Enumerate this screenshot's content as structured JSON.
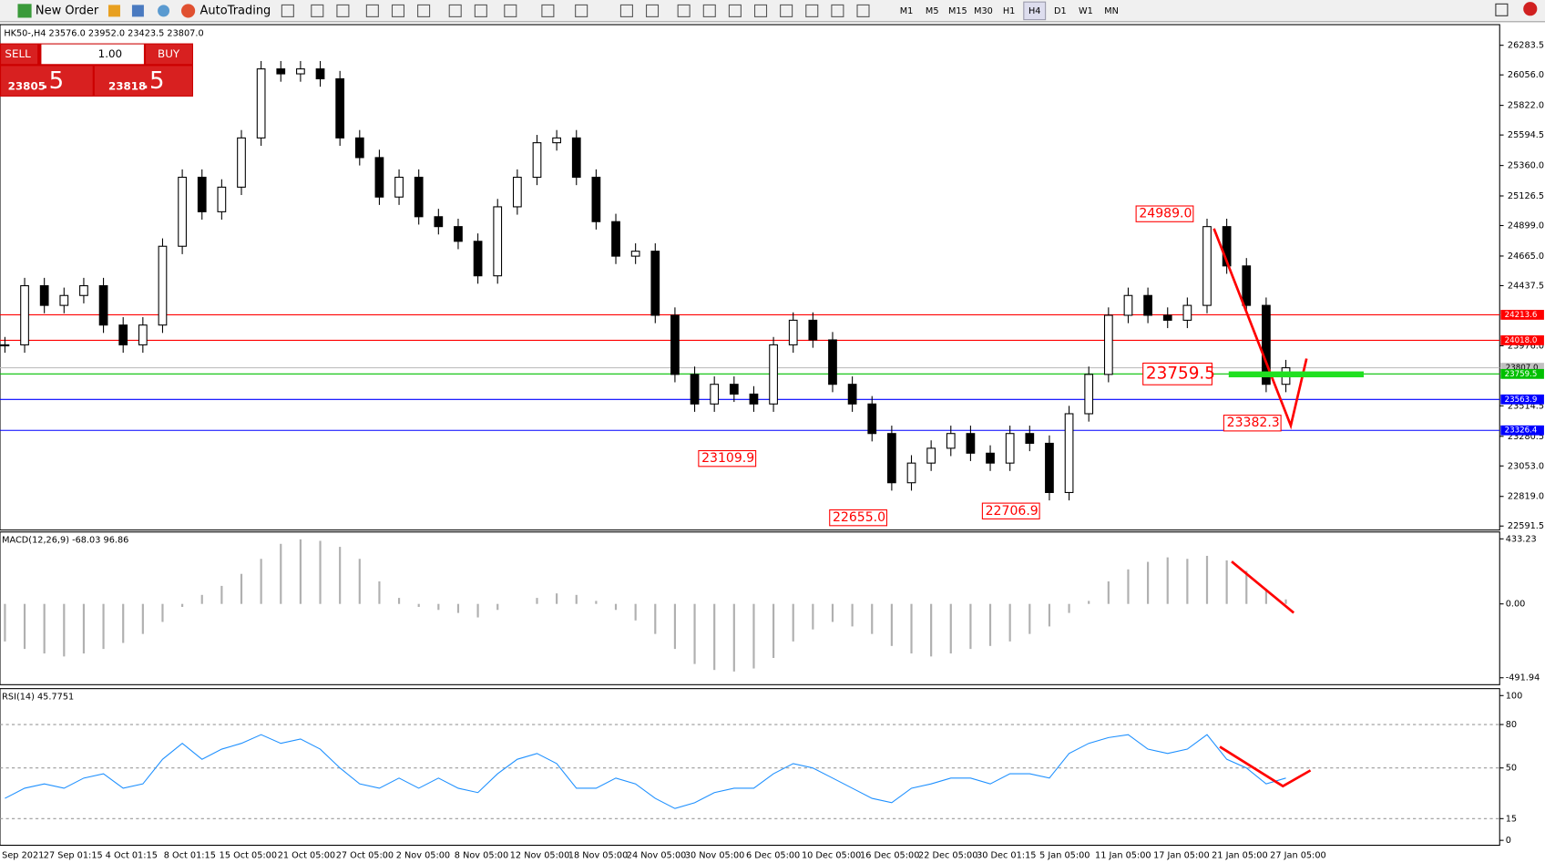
{
  "toolbar": {
    "new_order": "New Order",
    "auto_trading": "AutoTrading",
    "timeframes": [
      "M1",
      "M5",
      "M15",
      "M30",
      "H1",
      "H4",
      "D1",
      "W1",
      "MN"
    ],
    "active_timeframe": 5
  },
  "symbol_info": "HK50-,H4  23576.0 23952.0 23423.5 23807.0",
  "trade_panel": {
    "sell": "SELL",
    "buy": "BUY",
    "volume": "1.00",
    "sell_price_main": "23805",
    "sell_price_pips": ".5",
    "buy_price_main": "23818",
    "buy_price_pips": ".5"
  },
  "price_chart": {
    "ylim": [
      22561,
      26442
    ],
    "yticks": [
      {
        "value": 26283.5,
        "label": "26283.5"
      },
      {
        "value": 26056.0,
        "label": "26056.0"
      },
      {
        "value": 25822.0,
        "label": "25822.0"
      },
      {
        "value": 25594.5,
        "label": "25594.5"
      },
      {
        "value": 25360.0,
        "label": "25360.0"
      },
      {
        "value": 25126.5,
        "label": "25126.5"
      },
      {
        "value": 24899.0,
        "label": "24899.0"
      },
      {
        "value": 24665.0,
        "label": "24665.0"
      },
      {
        "value": 24437.5,
        "label": "24437.5"
      },
      {
        "value": 23976.0,
        "label": "23976.0"
      },
      {
        "value": 23514.5,
        "label": "23514.5"
      },
      {
        "value": 23280.5,
        "label": "23280.5"
      },
      {
        "value": 23053.0,
        "label": "23053.0"
      },
      {
        "value": 22819.0,
        "label": "22819.0"
      },
      {
        "value": 22591.5,
        "label": "22591.5"
      }
    ],
    "closes": [
      23983,
      24437,
      24286,
      24362,
      24437,
      24135,
      23983,
      24135,
      24740,
      25270,
      25005,
      25194,
      25572,
      26102,
      26064,
      26102,
      26026,
      25572,
      25421,
      25118,
      25270,
      24967,
      24891,
      24778,
      24513,
      25043,
      25270,
      25535,
      25572,
      25270,
      24929,
      24664,
      24702,
      24210,
      23756,
      23529,
      23680,
      23605,
      23529,
      23983,
      24172,
      24021,
      23680,
      23529,
      23302,
      22924,
      23075,
      23189,
      23302,
      23151,
      23075,
      23302,
      23227,
      22849,
      23454,
      23756,
      24210,
      24362,
      24210,
      24172,
      24286,
      24891,
      24589,
      24286,
      23680,
      23807
    ],
    "levels": [
      {
        "value": 24213.6,
        "label": "24213.6",
        "color": "#ff0000"
      },
      {
        "value": 24018.0,
        "label": "24018.0",
        "color": "#ff0000"
      },
      {
        "value": 23759.5,
        "label": "23759.5",
        "color": "#00c000"
      },
      {
        "value": 23563.9,
        "label": "23563.9",
        "color": "#0000ff"
      },
      {
        "value": 23326.4,
        "label": "23326.4",
        "color": "#0000ff"
      }
    ],
    "current": {
      "value": 23807.0,
      "label": "23807.0"
    },
    "annotations": [
      {
        "value": 24989.0,
        "label": "24989.0"
      },
      {
        "value": 23759.5,
        "label": "23759.5"
      },
      {
        "value": 23382.3,
        "label": "23382.3"
      },
      {
        "value": 23109.9,
        "label": "23109.9"
      },
      {
        "value": 22655.0,
        "label": "22655.0"
      },
      {
        "value": 22706.9,
        "label": "22706.9"
      }
    ]
  },
  "macd": {
    "title": "MACD(12,26,9) -68.03 96.86",
    "ylim": [
      -538,
      479
    ],
    "yticks": [
      {
        "value": 433.23,
        "label": "433.23"
      },
      {
        "value": 0,
        "label": "0.00"
      },
      {
        "value": -491.94,
        "label": "-491.94"
      }
    ],
    "values": [
      -250,
      -300,
      -330,
      -350,
      -330,
      -300,
      -260,
      -200,
      -120,
      -20,
      60,
      120,
      200,
      300,
      400,
      430,
      420,
      380,
      300,
      150,
      40,
      -20,
      -40,
      -60,
      -90,
      -40,
      0,
      40,
      70,
      60,
      20,
      -40,
      -110,
      -200,
      -300,
      -400,
      -440,
      -450,
      -430,
      -360,
      -250,
      -170,
      -120,
      -150,
      -200,
      -280,
      -330,
      -350,
      -330,
      -300,
      -280,
      -250,
      -200,
      -150,
      -60,
      20,
      150,
      230,
      280,
      310,
      300,
      320,
      290,
      220,
      100,
      30
    ]
  },
  "rsi": {
    "title": "RSI(14) 45.7751",
    "ylim": [
      -3.4,
      104.8
    ],
    "yticks": [
      100,
      80,
      50,
      15,
      0
    ],
    "levels": [
      80,
      50,
      15
    ],
    "values": [
      29,
      36,
      39,
      36,
      43,
      46,
      36,
      39,
      56,
      67,
      56,
      63,
      67,
      73,
      67,
      70,
      63,
      50,
      39,
      36,
      43,
      36,
      43,
      36,
      33,
      46,
      56,
      60,
      53,
      36,
      36,
      43,
      39,
      29,
      22,
      26,
      33,
      36,
      36,
      46,
      53,
      50,
      43,
      36,
      29,
      26,
      36,
      39,
      43,
      43,
      39,
      46,
      46,
      43,
      60,
      67,
      71,
      73,
      63,
      60,
      63,
      73,
      56,
      50,
      39,
      43
    ]
  },
  "x_labels": [
    "Sep 2021",
    "27 Sep 01:15",
    "4 Oct 01:15",
    "8 Oct 01:15",
    "15 Oct 05:00",
    "21 Oct 05:00",
    "27 Oct 05:00",
    "2 Nov 05:00",
    "8 Nov 05:00",
    "12 Nov 05:00",
    "18 Nov 05:00",
    "24 Nov 05:00",
    "30 Nov 05:00",
    "6 Dec 05:00",
    "10 Dec 05:00",
    "16 Dec 05:00",
    "22 Dec 05:00",
    "30 Dec 01:15",
    "5 Jan 05:00",
    "11 Jan 05:00",
    "17 Jan 05:00",
    "21 Jan 05:00",
    "27 Jan 05:00"
  ]
}
